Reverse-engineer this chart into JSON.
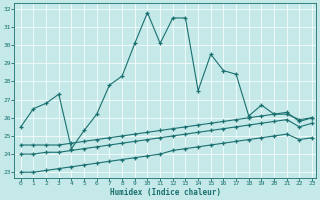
{
  "xlabel": "Humidex (Indice chaleur)",
  "background_color": "#c5e8e8",
  "line_color": "#1a7070",
  "xlim_min": -0.5,
  "xlim_max": 23.3,
  "ylim_min": 22.7,
  "ylim_max": 32.3,
  "yticks": [
    23,
    24,
    25,
    26,
    27,
    28,
    29,
    30,
    31,
    32
  ],
  "xticks": [
    0,
    1,
    2,
    3,
    4,
    5,
    6,
    7,
    8,
    9,
    10,
    11,
    12,
    13,
    14,
    15,
    16,
    17,
    18,
    19,
    20,
    21,
    22,
    23
  ],
  "line1_x": [
    0,
    1,
    2,
    3,
    4,
    5,
    6,
    7,
    8,
    9,
    10,
    11,
    12,
    13,
    14,
    15,
    16,
    17,
    18,
    19,
    20,
    21,
    22,
    23
  ],
  "line1_y": [
    25.5,
    26.5,
    26.8,
    27.3,
    24.3,
    25.3,
    26.2,
    27.8,
    28.3,
    30.1,
    31.8,
    30.1,
    31.5,
    31.5,
    27.5,
    29.5,
    28.6,
    28.4,
    26.1,
    26.7,
    26.2,
    26.2,
    25.9,
    26.0
  ],
  "line2_x": [
    0,
    1,
    2,
    3,
    4,
    5,
    6,
    7,
    8,
    9,
    10,
    11,
    12,
    13,
    14,
    15,
    16,
    17,
    18,
    19,
    20,
    21,
    22,
    23
  ],
  "line2_y": [
    24.5,
    24.5,
    24.5,
    24.5,
    24.6,
    24.7,
    24.8,
    24.9,
    25.0,
    25.1,
    25.2,
    25.3,
    25.4,
    25.5,
    25.6,
    25.7,
    25.8,
    25.9,
    26.0,
    26.1,
    26.2,
    26.3,
    25.8,
    26.0
  ],
  "line3_x": [
    0,
    1,
    2,
    3,
    4,
    5,
    6,
    7,
    8,
    9,
    10,
    11,
    12,
    13,
    14,
    15,
    16,
    17,
    18,
    19,
    20,
    21,
    22,
    23
  ],
  "line3_y": [
    24.0,
    24.0,
    24.1,
    24.1,
    24.2,
    24.3,
    24.4,
    24.5,
    24.6,
    24.7,
    24.8,
    24.9,
    25.0,
    25.1,
    25.2,
    25.3,
    25.4,
    25.5,
    25.6,
    25.7,
    25.8,
    25.9,
    25.5,
    25.7
  ],
  "line4_x": [
    0,
    1,
    2,
    3,
    4,
    5,
    6,
    7,
    8,
    9,
    10,
    11,
    12,
    13,
    14,
    15,
    16,
    17,
    18,
    19,
    20,
    21,
    22,
    23
  ],
  "line4_y": [
    23.0,
    23.0,
    23.1,
    23.2,
    23.3,
    23.4,
    23.5,
    23.6,
    23.7,
    23.8,
    23.9,
    24.0,
    24.2,
    24.3,
    24.4,
    24.5,
    24.6,
    24.7,
    24.8,
    24.9,
    25.0,
    25.1,
    24.8,
    24.9
  ]
}
